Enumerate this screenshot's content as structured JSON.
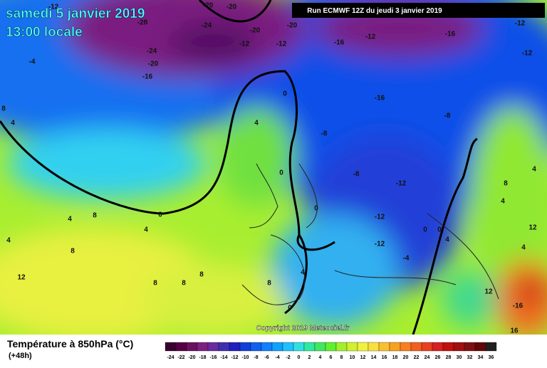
{
  "header": {
    "date": "samedi 5 janvier 2019",
    "time": "13:00 locale",
    "run": "Run ECMWF 12Z du jeudi 3 janvier 2019"
  },
  "map": {
    "contour_labels": [
      "-12",
      "-20",
      "-20",
      "-28",
      "-24",
      "-20",
      "-20",
      "-12",
      "-16",
      "-12",
      "-12",
      "-12",
      "-16",
      "-12",
      "-24",
      "-20",
      "-4",
      "-16",
      "0",
      "-16",
      "8",
      "4",
      "4",
      "-8",
      "-8",
      "0",
      "-8",
      "-12",
      "4",
      "8",
      "0",
      "-12",
      "0",
      "4",
      "8",
      "4",
      "0",
      "0",
      "4",
      "4",
      "12",
      "4",
      "8",
      "-12",
      "-4",
      "4",
      "12",
      "8",
      "8",
      "8",
      "8",
      "4",
      "12",
      "0",
      "-16",
      "16"
    ]
  },
  "footer": {
    "title": "Température à 850hPa (°C)",
    "lead": "(+48h)",
    "copyright": "Copyright 2019 Meteociel.fr"
  },
  "color_scale": {
    "ticks": [
      "-24",
      "-22",
      "-20",
      "-18",
      "-16",
      "-14",
      "-12",
      "-10",
      "-8",
      "-6",
      "-4",
      "-2",
      "0",
      "2",
      "4",
      "6",
      "8",
      "10",
      "12",
      "14",
      "16",
      "18",
      "20",
      "22",
      "24",
      "26",
      "28",
      "30",
      "32",
      "34",
      "36"
    ],
    "colors": [
      "#3a0030",
      "#550045",
      "#6b1060",
      "#7d2080",
      "#6a2aa0",
      "#4030b0",
      "#2020c0",
      "#1040d8",
      "#1060f0",
      "#1080ff",
      "#10a0ff",
      "#20c0ff",
      "#30e0e0",
      "#30e8a0",
      "#40e860",
      "#60f030",
      "#a0f030",
      "#d0f030",
      "#f0f040",
      "#f8e040",
      "#f8c030",
      "#f8a020",
      "#f88020",
      "#f06020",
      "#e84020",
      "#d82020",
      "#c01010",
      "#a01010",
      "#801010",
      "#600808",
      "#202020"
    ]
  }
}
